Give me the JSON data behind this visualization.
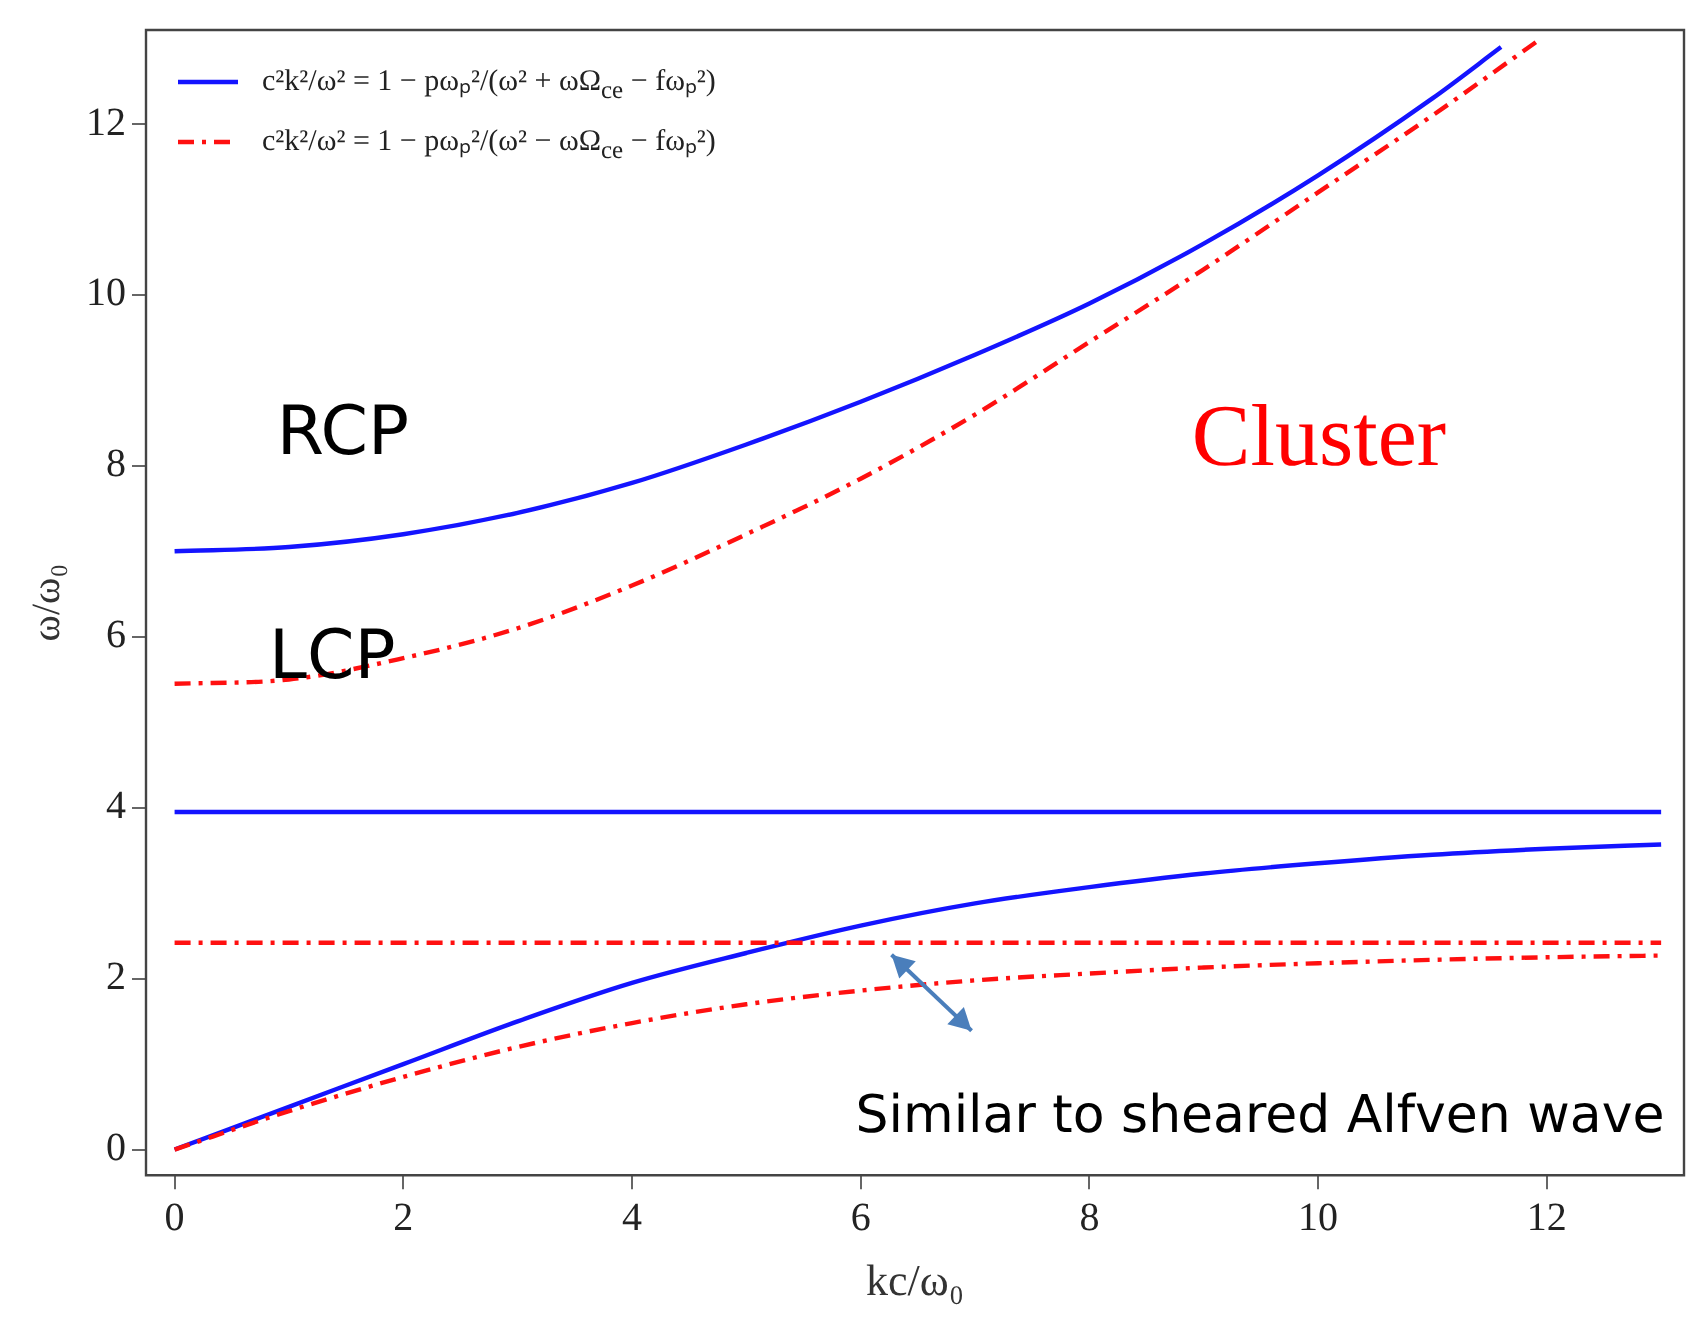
{
  "chart_data": {
    "type": "line",
    "xlabel": "kc/ω₀",
    "ylabel": "ω/ω₀",
    "xlim": [
      -0.25,
      13.2
    ],
    "ylim": [
      -0.3,
      13.1
    ],
    "xticks": [
      0,
      2,
      4,
      6,
      8,
      10,
      12
    ],
    "yticks": [
      0,
      2,
      4,
      6,
      8,
      10,
      12
    ],
    "grid": false,
    "legend": "top left",
    "marker": "none",
    "series": [
      {
        "name": "c²k²/ω² = 1 − pωₚ²/(ω² + ωΩ$_{ce}$ − fωₚ²)",
        "color": "#1414ff",
        "line_style": "solid",
        "x": [
          0,
          1,
          2,
          3,
          4,
          5,
          6,
          7,
          8,
          9,
          10,
          11,
          11.6
        ],
        "values": [
          7.0,
          7.05,
          7.2,
          7.45,
          7.8,
          8.25,
          8.75,
          9.3,
          9.9,
          10.6,
          11.4,
          12.3,
          12.9
        ]
      },
      {
        "color": "#1414ff",
        "line_style": "solid",
        "x": [
          0,
          13
        ],
        "values": [
          3.95,
          3.95
        ]
      },
      {
        "color": "#1414ff",
        "line_style": "solid",
        "x": [
          0,
          1,
          2,
          3,
          4,
          5,
          6,
          7,
          8,
          9,
          10,
          11,
          12,
          13
        ],
        "values": [
          0,
          0.5,
          1.0,
          1.5,
          1.95,
          2.3,
          2.62,
          2.88,
          3.07,
          3.23,
          3.35,
          3.45,
          3.52,
          3.57
        ]
      },
      {
        "name": "c²k²/ω² = 1 − pωₚ²/(ω² − ωΩ$_{ce}$ − fωₚ²)",
        "color": "#ff1010",
        "line_style": "dashed",
        "x": [
          0,
          1,
          2,
          3,
          4,
          5,
          6,
          7,
          8,
          9,
          10,
          11,
          11.95
        ],
        "values": [
          5.45,
          5.5,
          5.75,
          6.1,
          6.6,
          7.2,
          7.85,
          8.6,
          9.45,
          10.3,
          11.2,
          12.1,
          13.0
        ]
      },
      {
        "color": "#ff1010",
        "line_style": "dashed",
        "x": [
          0,
          13
        ],
        "values": [
          2.42,
          2.42
        ]
      },
      {
        "color": "#ff1010",
        "line_style": "dashed",
        "x": [
          0,
          1,
          2,
          3,
          4,
          5,
          6,
          7,
          8,
          9,
          10,
          11,
          12,
          13
        ],
        "values": [
          0,
          0.45,
          0.85,
          1.2,
          1.48,
          1.7,
          1.86,
          1.98,
          2.06,
          2.13,
          2.18,
          2.22,
          2.25,
          2.27
        ]
      }
    ],
    "annotations": [
      "RCP",
      "LCP",
      "Cluster",
      {
        "text": "Similar to sheared Alfven wave",
        "x": 6.2,
        "y": 2.42
      }
    ]
  }
}
